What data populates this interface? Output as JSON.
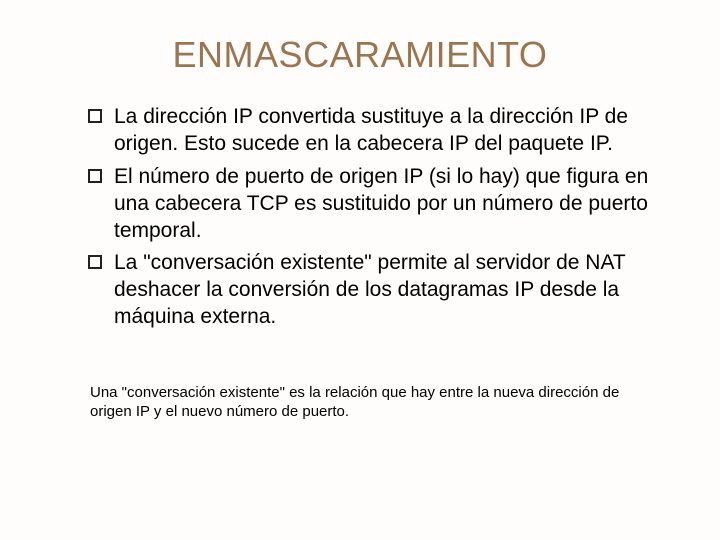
{
  "type": "document-slide",
  "background_color": "#fefdfc",
  "title": {
    "text": "ENMASCARAMIENTO",
    "color": "#9a7550",
    "fontsize": 36
  },
  "bullets": {
    "color": "#000000",
    "fontsize": 21,
    "line_height": 1.28,
    "items": [
      "La dirección IP convertida sustituye a la dirección IP de origen. Esto sucede en la cabecera IP del paquete IP.",
      "El número de puerto de origen IP (si lo hay) que figura en una cabecera TCP es sustituido por un número de puerto temporal.",
      "La \"conversación existente\" permite al servidor de NAT deshacer la conversión de los datagramas IP desde la máquina externa."
    ]
  },
  "footnote": {
    "text": "Una \"conversación existente\" es la relación que hay entre la nueva dirección de origen IP y el nuevo número de puerto.",
    "color": "#000000",
    "fontsize": 15,
    "line_height": 1.25
  }
}
